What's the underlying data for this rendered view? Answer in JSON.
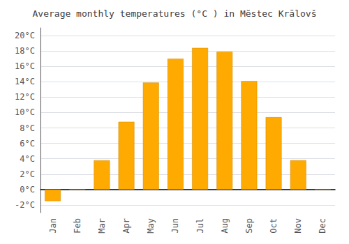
{
  "chart_data": {
    "type": "bar",
    "title": "Average monthly temperatures (°C ) in Mĕstec Krālovš",
    "categories": [
      "Jan",
      "Feb",
      "Mar",
      "Apr",
      "May",
      "Jun",
      "Jul",
      "Aug",
      "Sep",
      "Oct",
      "Nov",
      "Dec"
    ],
    "values": [
      -1.5,
      0.0,
      3.8,
      8.8,
      13.9,
      17.0,
      18.4,
      17.9,
      14.1,
      9.4,
      3.8,
      0.0
    ],
    "color": "#FFAA00",
    "ylim": [
      -3,
      21
    ],
    "yticks": [
      {
        "value": -2,
        "label": "-2°C"
      },
      {
        "value": 0,
        "label": "0°C"
      },
      {
        "value": 2,
        "label": "2°C"
      },
      {
        "value": 4,
        "label": "4°C"
      },
      {
        "value": 6,
        "label": "6°C"
      },
      {
        "value": 8,
        "label": "8°C"
      },
      {
        "value": 10,
        "label": "10°C"
      },
      {
        "value": 12,
        "label": "12°C"
      },
      {
        "value": 14,
        "label": "14°C"
      },
      {
        "value": 16,
        "label": "16°C"
      },
      {
        "value": 18,
        "label": "18°C"
      },
      {
        "value": 20,
        "label": "20°C"
      }
    ],
    "grid": true
  }
}
